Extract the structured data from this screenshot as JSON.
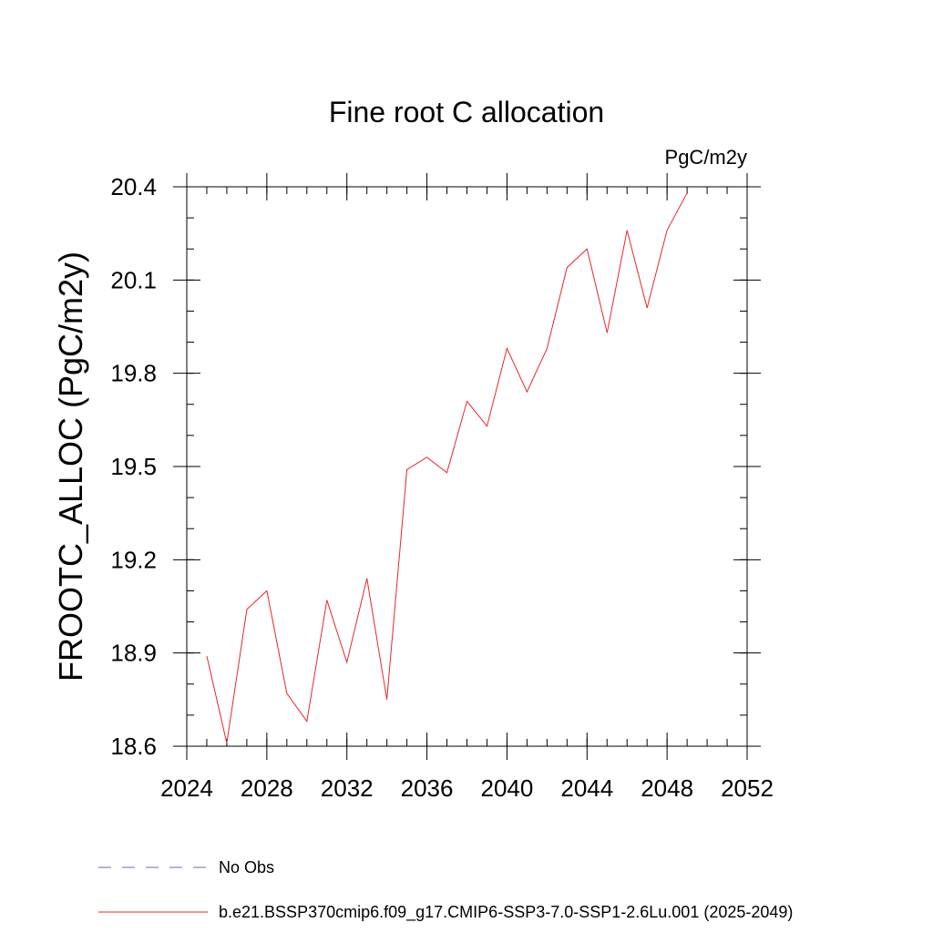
{
  "chart_data": {
    "type": "line",
    "title": "Fine root C allocation",
    "units": "PgC/m2y",
    "ylabel": "FROOTC_ALLOC  (PgC/m2y)",
    "xlabel": "",
    "xlim": [
      2024,
      2052
    ],
    "ylim": [
      18.6,
      20.4
    ],
    "x_ticks": [
      2024,
      2028,
      2032,
      2036,
      2040,
      2044,
      2048,
      2052
    ],
    "x_tick_labels": [
      "2024",
      "2028",
      "2032",
      "2036",
      "2040",
      "2044",
      "2048",
      "2052"
    ],
    "x_minor_step": 1,
    "y_ticks": [
      18.6,
      18.9,
      19.2,
      19.5,
      19.8,
      20.1,
      20.4
    ],
    "y_tick_labels": [
      "18.6",
      "18.9",
      "19.2",
      "19.5",
      "19.8",
      "20.1",
      "20.4"
    ],
    "y_minor_step": 0.1,
    "grid": false,
    "legend_placement": "bottom",
    "series": [
      {
        "name": "b.e21.BSSP370cmip6.f09_g17.CMIP6-SSP3-7.0-SSP1-2.6Lu.001 (2025-2049)",
        "color": "#e8262c",
        "style": "solid",
        "x": [
          2025,
          2026,
          2027,
          2028,
          2029,
          2030,
          2031,
          2032,
          2033,
          2034,
          2035,
          2036,
          2037,
          2038,
          2039,
          2040,
          2041,
          2042,
          2043,
          2044,
          2045,
          2046,
          2047,
          2048,
          2049
        ],
        "y": [
          18.89,
          18.61,
          19.04,
          19.1,
          18.77,
          18.68,
          19.07,
          18.87,
          19.14,
          18.75,
          19.49,
          19.53,
          19.48,
          19.71,
          19.63,
          19.88,
          19.74,
          19.88,
          20.14,
          20.2,
          19.93,
          20.26,
          20.01,
          20.26,
          20.38
        ]
      }
    ],
    "legend": [
      {
        "label": "No Obs",
        "color": "#7f62a8",
        "style": "dashed"
      },
      {
        "label": "b.e21.BSSP370cmip6.f09_g17.CMIP6-SSP3-7.0-SSP1-2.6Lu.001 (2025-2049)",
        "color": "#e8262c",
        "style": "solid"
      }
    ]
  }
}
